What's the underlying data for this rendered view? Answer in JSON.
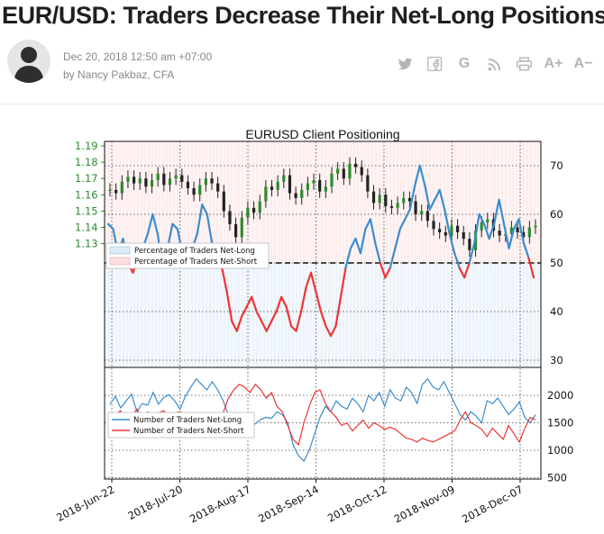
{
  "article": {
    "title": "EUR/USD: Traders Decrease Their Net-Long Positions",
    "date": "Dec 20, 2018 12:50 am +07:00",
    "author": "by  Nancy Pakbaz, CFA"
  },
  "toolbar": {
    "icons": [
      "twitter-icon",
      "facebook-icon",
      "google-icon",
      "rss-icon",
      "print-icon",
      "font-increase-icon",
      "font-decrease-icon"
    ],
    "google_glyph": "G",
    "font_up": "A+",
    "font_down": "A−"
  },
  "colors": {
    "green": "#2e8b2e",
    "long": "#3a8ccf",
    "short": "#ee3535",
    "long_fill": "#dbe9f5",
    "short_fill": "#fbdede"
  },
  "chart_data": [
    {
      "type": "line",
      "title": "EURUSD Client Positioning",
      "y_left_ticks": [
        "1.19",
        "1.18",
        "1.17",
        "1.16",
        "1.15",
        "1.14",
        "1.13"
      ],
      "y_left_range": [
        1.12,
        1.194
      ],
      "y_right_ticks": [
        "70",
        "60",
        "50",
        "40",
        "30"
      ],
      "y_right_range": [
        29,
        75
      ],
      "reference_line": 50,
      "legend": [
        "Percentage of Traders Net-Long",
        "Percentage of Traders Net-Short"
      ],
      "price_range": "1.13 – 1.18",
      "percent_net_long": [
        [
          0,
          58
        ],
        [
          3,
          57
        ],
        [
          6,
          52
        ],
        [
          9,
          55
        ],
        [
          12,
          50
        ],
        [
          15,
          48
        ],
        [
          18,
          51
        ],
        [
          21,
          53
        ],
        [
          24,
          56
        ],
        [
          27,
          60
        ],
        [
          30,
          56
        ],
        [
          33,
          49
        ],
        [
          36,
          53
        ],
        [
          39,
          58
        ],
        [
          42,
          57
        ],
        [
          45,
          52
        ],
        [
          48,
          49
        ],
        [
          51,
          53
        ],
        [
          54,
          56
        ],
        [
          57,
          62
        ],
        [
          60,
          60
        ],
        [
          63,
          54
        ],
        [
          66,
          51
        ],
        [
          69,
          49
        ],
        [
          72,
          44
        ],
        [
          75,
          38
        ],
        [
          78,
          36
        ],
        [
          81,
          39
        ],
        [
          84,
          41
        ],
        [
          87,
          43
        ],
        [
          90,
          40
        ],
        [
          93,
          38
        ],
        [
          96,
          36
        ],
        [
          99,
          38
        ],
        [
          102,
          40
        ],
        [
          105,
          43
        ],
        [
          108,
          41
        ],
        [
          111,
          37
        ],
        [
          114,
          36
        ],
        [
          117,
          40
        ],
        [
          120,
          45
        ],
        [
          123,
          48
        ],
        [
          126,
          44
        ],
        [
          129,
          40
        ],
        [
          132,
          37
        ],
        [
          135,
          35
        ],
        [
          138,
          37
        ],
        [
          141,
          43
        ],
        [
          144,
          49
        ],
        [
          147,
          53
        ],
        [
          150,
          55
        ],
        [
          153,
          52
        ],
        [
          156,
          57
        ],
        [
          159,
          59
        ],
        [
          162,
          54
        ],
        [
          165,
          50
        ],
        [
          168,
          47
        ],
        [
          171,
          49
        ],
        [
          174,
          53
        ],
        [
          177,
          57
        ],
        [
          180,
          59
        ],
        [
          183,
          61
        ],
        [
          186,
          66
        ],
        [
          189,
          70
        ],
        [
          192,
          66
        ],
        [
          195,
          61
        ],
        [
          198,
          63
        ],
        [
          201,
          65
        ],
        [
          204,
          61
        ],
        [
          207,
          56
        ],
        [
          210,
          52
        ],
        [
          213,
          49
        ],
        [
          216,
          47
        ],
        [
          219,
          50
        ],
        [
          222,
          54
        ],
        [
          225,
          60
        ],
        [
          228,
          58
        ],
        [
          231,
          55
        ],
        [
          234,
          58
        ],
        [
          237,
          63
        ],
        [
          240,
          58
        ],
        [
          243,
          53
        ],
        [
          246,
          57
        ],
        [
          249,
          59
        ],
        [
          252,
          54
        ],
        [
          255,
          51
        ],
        [
          258,
          47
        ]
      ],
      "ohlc_sample_close": [
        1.163,
        1.161,
        1.168,
        1.171,
        1.167,
        1.17,
        1.165,
        1.169,
        1.173,
        1.166,
        1.17,
        1.172,
        1.168,
        1.164,
        1.16,
        1.166,
        1.17,
        1.167,
        1.162,
        1.15,
        1.142,
        1.134,
        1.146,
        1.152,
        1.149,
        1.156,
        1.165,
        1.163,
        1.168,
        1.172,
        1.161,
        1.158,
        1.163,
        1.167,
        1.169,
        1.162,
        1.165,
        1.173,
        1.176,
        1.17,
        1.179,
        1.177,
        1.172,
        1.162,
        1.155,
        1.16,
        1.153,
        1.152,
        1.155,
        1.158,
        1.156,
        1.148,
        1.15,
        1.144,
        1.139,
        1.137,
        1.135,
        1.141,
        1.137,
        1.133,
        1.126,
        1.138,
        1.143,
        1.145,
        1.138,
        1.135,
        1.136,
        1.14,
        1.137,
        1.134,
        1.14,
        1.141
      ]
    },
    {
      "type": "line",
      "y_right_ticks": [
        "2000",
        "1500",
        "1000",
        "500"
      ],
      "y_range": [
        500,
        2400
      ],
      "legend": [
        "Number of Traders Net-Long",
        "Number of Traders Net-Short"
      ],
      "x_tick_labels": [
        "2018-Jun-22",
        "2018-Jul-20",
        "2018-Aug-17",
        "2018-Sep-14",
        "2018-Oct-12",
        "2018-Nov-09",
        "2018-Dec-07"
      ],
      "series": [
        {
          "name": "Number of Traders Net-Long",
          "values": [
            1840,
            1980,
            1770,
            1900,
            2020,
            1700,
            1850,
            1820,
            2050,
            1840,
            1960,
            2010,
            1900,
            1750,
            1980,
            2150,
            2300,
            2200,
            2100,
            2250,
            2100,
            1900,
            1640,
            1500,
            1550,
            1420,
            1500,
            1480,
            1560,
            1600,
            1580,
            1700,
            1650,
            1500,
            1100,
            900,
            800,
            1000,
            1300,
            1600,
            1800,
            1700,
            1900,
            1800,
            1750,
            1950,
            1850,
            1700,
            2000,
            1900,
            2050,
            1800,
            2100,
            1950,
            1900,
            2150,
            2050,
            1850,
            2200,
            2300,
            2150,
            2100,
            2250,
            2050,
            1850,
            1650,
            1550,
            1700,
            1620,
            1500,
            1900,
            1850,
            1950,
            1800,
            1650,
            1750,
            1880,
            1600,
            1500,
            1650
          ]
        },
        {
          "name": "Number of Traders Net-Short",
          "values": [
            1600,
            1650,
            1720,
            1500,
            1620,
            1750,
            1580,
            1700,
            1520,
            1680,
            1720,
            1600,
            1680,
            1700,
            1650,
            1560,
            1520,
            1600,
            1550,
            1500,
            1600,
            1680,
            1950,
            2100,
            2200,
            2150,
            2050,
            2200,
            2100,
            1950,
            2050,
            1800,
            1700,
            1450,
            1200,
            1100,
            1500,
            1800,
            2050,
            2100,
            1850,
            1700,
            1600,
            1450,
            1500,
            1350,
            1450,
            1550,
            1400,
            1500,
            1450,
            1380,
            1420,
            1380,
            1300,
            1220,
            1200,
            1150,
            1220,
            1180,
            1150,
            1200,
            1250,
            1300,
            1350,
            1550,
            1700,
            1500,
            1450,
            1380,
            1250,
            1400,
            1300,
            1200,
            1450,
            1300,
            1150,
            1400,
            1600,
            1550
          ]
        }
      ]
    }
  ]
}
